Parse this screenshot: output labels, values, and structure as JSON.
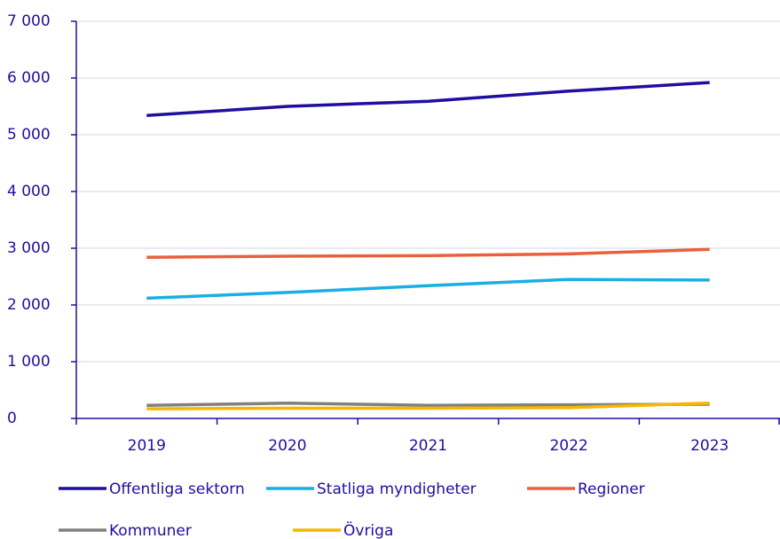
{
  "chart_data": {
    "type": "line",
    "categories": [
      "2019",
      "2020",
      "2021",
      "2022",
      "2023"
    ],
    "series": [
      {
        "name": "Offentliga sektorn",
        "color": "#1e0fa0",
        "values": [
          5340,
          5500,
          5590,
          5770,
          5920
        ]
      },
      {
        "name": "Statliga myndigheter",
        "color": "#1aaee5",
        "values": [
          2120,
          2220,
          2340,
          2450,
          2440
        ]
      },
      {
        "name": "Regioner",
        "color": "#e8603c",
        "values": [
          2840,
          2860,
          2870,
          2900,
          2980
        ]
      },
      {
        "name": "Kommuner",
        "color": "#808080",
        "values": [
          230,
          270,
          230,
          240,
          250
        ]
      },
      {
        "name": "Övriga",
        "color": "#f5b800",
        "values": [
          170,
          180,
          180,
          190,
          270
        ]
      }
    ],
    "ylim": [
      0,
      7000
    ],
    "yticks": [
      0,
      {
        "value": 1000,
        "label": "1 000"
      },
      {
        "value": 2000,
        "label": "2 000"
      },
      {
        "value": 3000,
        "label": "3 000"
      },
      {
        "value": 4000,
        "label": "4 000"
      },
      {
        "value": 5000,
        "label": "5 000"
      },
      {
        "value": 6000,
        "label": "6 000"
      },
      {
        "value": 7000,
        "label": "7 000"
      }
    ],
    "grid": true
  }
}
